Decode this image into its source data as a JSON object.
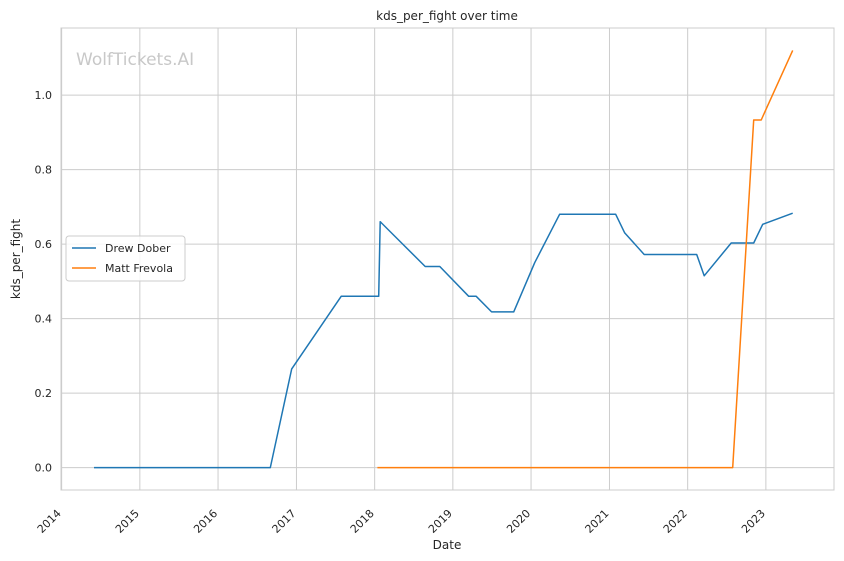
{
  "watermark": "WolfTickets.AI",
  "chart_data": {
    "type": "line",
    "title": "kds_per_fight over time",
    "xlabel": "Date",
    "ylabel": "kds_per_fight",
    "x_ticks": [
      "2014",
      "2015",
      "2016",
      "2017",
      "2018",
      "2019",
      "2020",
      "2021",
      "2022",
      "2023"
    ],
    "y_ticks": [
      "0.0",
      "0.2",
      "0.4",
      "0.6",
      "0.8",
      "1.0"
    ],
    "xlim": [
      "2013-12-29",
      "2023-11-15"
    ],
    "ylim": [
      -0.06,
      1.18
    ],
    "grid": true,
    "legend_position": "center-left",
    "colors": {
      "Drew Dober": "#1f77b4",
      "Matt Frevola": "#ff7f0e"
    },
    "series": [
      {
        "name": "Drew Dober",
        "color": "#1f77b4",
        "points": [
          [
            "2014-06-01",
            0.0
          ],
          [
            "2016-09-01",
            0.0
          ],
          [
            "2016-12-10",
            0.265
          ],
          [
            "2017-07-29",
            0.46
          ],
          [
            "2018-01-20",
            0.46
          ],
          [
            "2018-01-27",
            0.66
          ],
          [
            "2018-08-25",
            0.54
          ],
          [
            "2018-11-01",
            0.54
          ],
          [
            "2019-03-16",
            0.46
          ],
          [
            "2019-04-20",
            0.46
          ],
          [
            "2019-07-01",
            0.418
          ],
          [
            "2019-10-12",
            0.418
          ],
          [
            "2020-01-18",
            0.55
          ],
          [
            "2020-05-13",
            0.68
          ],
          [
            "2021-01-30",
            0.68
          ],
          [
            "2021-03-13",
            0.63
          ],
          [
            "2021-06-12",
            0.572
          ],
          [
            "2022-02-12",
            0.572
          ],
          [
            "2022-03-19",
            0.515
          ],
          [
            "2022-07-23",
            0.603
          ],
          [
            "2022-11-05",
            0.603
          ],
          [
            "2022-12-17",
            0.653
          ],
          [
            "2023-05-06",
            0.683
          ]
        ]
      },
      {
        "name": "Matt Frevola",
        "color": "#ff7f0e",
        "points": [
          [
            "2018-01-14",
            0.0
          ],
          [
            "2022-07-30",
            0.0
          ],
          [
            "2022-11-05",
            0.933
          ],
          [
            "2022-12-10",
            0.933
          ],
          [
            "2023-05-06",
            1.12
          ]
        ]
      }
    ]
  }
}
